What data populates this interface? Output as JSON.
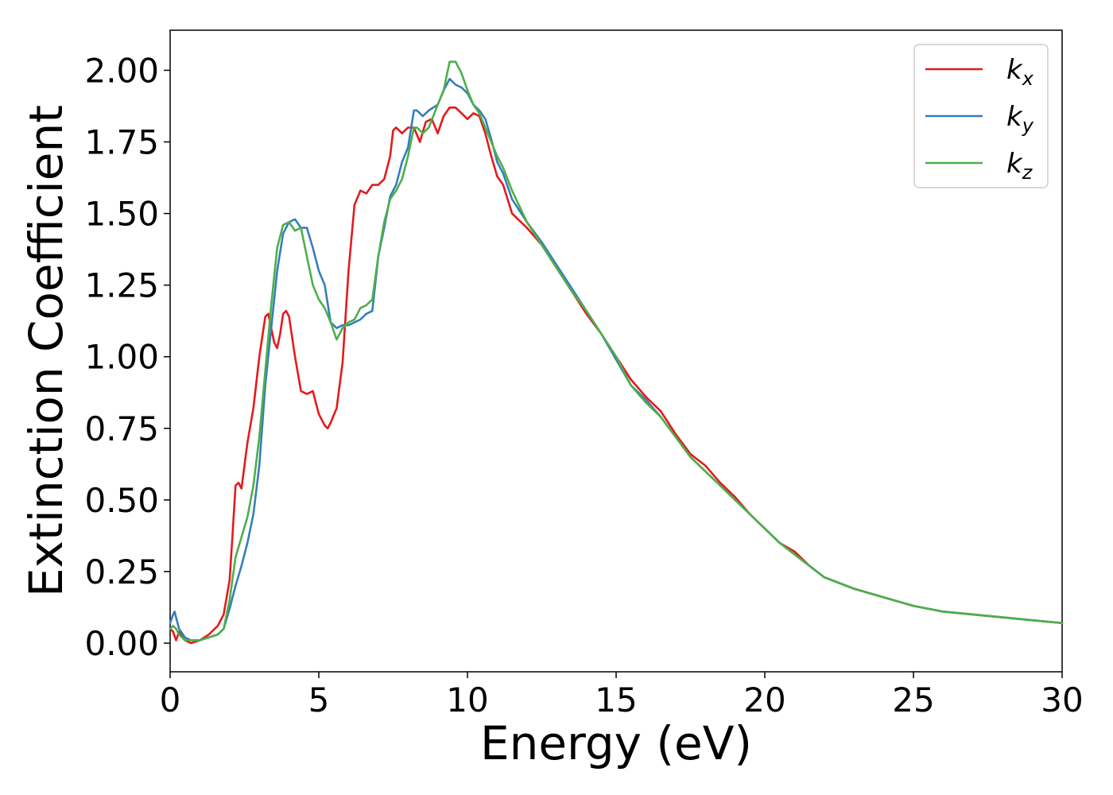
{
  "chart_data": {
    "type": "line",
    "xlabel": "Energy (eV)",
    "ylabel": "Extinction Coefficient",
    "xlim": [
      0,
      30
    ],
    "ylim": [
      -0.1,
      2.14
    ],
    "xticks": [
      0,
      5,
      10,
      15,
      20,
      25,
      30
    ],
    "xtick_labels": [
      "0",
      "5",
      "10",
      "15",
      "20",
      "25",
      "30"
    ],
    "yticks": [
      0.0,
      0.25,
      0.5,
      0.75,
      1.0,
      1.25,
      1.5,
      1.75,
      2.0
    ],
    "ytick_labels": [
      "0.00",
      "0.25",
      "0.50",
      "0.75",
      "1.00",
      "1.25",
      "1.50",
      "1.75",
      "2.00"
    ],
    "grid": false,
    "legend_position": "top-right",
    "series": [
      {
        "name": "k_x",
        "label_main": "k",
        "label_sub": "x",
        "color": "#e41a1c",
        "x": [
          0,
          0.1,
          0.2,
          0.3,
          0.5,
          0.7,
          1.0,
          1.3,
          1.6,
          1.8,
          2.0,
          2.1,
          2.2,
          2.3,
          2.4,
          2.6,
          2.8,
          3.0,
          3.2,
          3.3,
          3.4,
          3.5,
          3.6,
          3.7,
          3.8,
          3.9,
          4.0,
          4.2,
          4.4,
          4.6,
          4.8,
          5.0,
          5.2,
          5.3,
          5.4,
          5.6,
          5.8,
          6.0,
          6.2,
          6.4,
          6.6,
          6.8,
          7.0,
          7.2,
          7.4,
          7.5,
          7.6,
          7.8,
          8.0,
          8.2,
          8.4,
          8.6,
          8.8,
          9.0,
          9.2,
          9.4,
          9.6,
          9.8,
          10.0,
          10.2,
          10.4,
          10.6,
          10.8,
          11.0,
          11.2,
          11.5,
          12.0,
          12.5,
          13.0,
          13.5,
          14.0,
          14.5,
          15.0,
          15.5,
          16.0,
          16.5,
          17.0,
          17.5,
          18.0,
          18.5,
          19.0,
          19.5,
          20.0,
          20.5,
          21.0,
          21.5,
          22.0,
          23.0,
          24.0,
          25.0,
          26.0,
          27.0,
          28.0,
          29.0,
          30.0
        ],
        "y": [
          0.05,
          0.04,
          0.01,
          0.04,
          0.01,
          0.0,
          0.01,
          0.03,
          0.06,
          0.1,
          0.22,
          0.38,
          0.55,
          0.56,
          0.54,
          0.7,
          0.82,
          1.0,
          1.14,
          1.15,
          1.1,
          1.05,
          1.03,
          1.08,
          1.15,
          1.16,
          1.14,
          1.0,
          0.88,
          0.87,
          0.88,
          0.8,
          0.76,
          0.75,
          0.77,
          0.82,
          0.98,
          1.3,
          1.53,
          1.58,
          1.57,
          1.6,
          1.6,
          1.62,
          1.7,
          1.79,
          1.8,
          1.78,
          1.8,
          1.8,
          1.75,
          1.82,
          1.83,
          1.78,
          1.84,
          1.87,
          1.87,
          1.85,
          1.83,
          1.85,
          1.84,
          1.78,
          1.7,
          1.63,
          1.6,
          1.5,
          1.45,
          1.39,
          1.31,
          1.23,
          1.15,
          1.08,
          1.0,
          0.92,
          0.86,
          0.81,
          0.73,
          0.66,
          0.62,
          0.56,
          0.51,
          0.45,
          0.4,
          0.35,
          0.32,
          0.27,
          0.23,
          0.19,
          0.16,
          0.13,
          0.11,
          0.1,
          0.09,
          0.08,
          0.07
        ]
      },
      {
        "name": "k_y",
        "label_main": "k",
        "label_sub": "y",
        "color": "#377eb8",
        "x": [
          0,
          0.1,
          0.15,
          0.2,
          0.3,
          0.5,
          0.7,
          1.0,
          1.3,
          1.6,
          1.8,
          2.0,
          2.2,
          2.4,
          2.6,
          2.8,
          3.0,
          3.2,
          3.4,
          3.6,
          3.8,
          4.0,
          4.2,
          4.4,
          4.6,
          4.8,
          5.0,
          5.2,
          5.4,
          5.6,
          5.8,
          6.0,
          6.2,
          6.4,
          6.6,
          6.8,
          7.0,
          7.2,
          7.4,
          7.6,
          7.8,
          8.0,
          8.2,
          8.3,
          8.5,
          8.7,
          9.0,
          9.2,
          9.4,
          9.6,
          9.8,
          10.0,
          10.2,
          10.4,
          10.6,
          10.8,
          11.0,
          11.2,
          11.5,
          12.0,
          12.5,
          13.0,
          13.5,
          14.0,
          14.5,
          15.0,
          15.5,
          16.0,
          16.5,
          17.0,
          17.5,
          18.0,
          18.5,
          19.0,
          19.5,
          20.0,
          20.5,
          21.0,
          21.5,
          22.0,
          23.0,
          24.0,
          25.0,
          26.0,
          27.0,
          28.0,
          29.0,
          30.0
        ],
        "y": [
          0.07,
          0.1,
          0.11,
          0.09,
          0.05,
          0.02,
          0.01,
          0.01,
          0.02,
          0.03,
          0.05,
          0.12,
          0.2,
          0.27,
          0.35,
          0.45,
          0.62,
          0.9,
          1.1,
          1.3,
          1.43,
          1.47,
          1.48,
          1.45,
          1.45,
          1.38,
          1.3,
          1.25,
          1.12,
          1.1,
          1.11,
          1.11,
          1.12,
          1.13,
          1.15,
          1.16,
          1.35,
          1.45,
          1.56,
          1.6,
          1.68,
          1.73,
          1.86,
          1.86,
          1.84,
          1.86,
          1.88,
          1.93,
          1.97,
          1.95,
          1.94,
          1.92,
          1.88,
          1.86,
          1.83,
          1.76,
          1.68,
          1.64,
          1.55,
          1.47,
          1.4,
          1.32,
          1.24,
          1.16,
          1.08,
          0.99,
          0.9,
          0.85,
          0.79,
          0.72,
          0.65,
          0.6,
          0.55,
          0.5,
          0.45,
          0.4,
          0.35,
          0.31,
          0.27,
          0.23,
          0.19,
          0.16,
          0.13,
          0.11,
          0.1,
          0.09,
          0.08,
          0.07
        ]
      },
      {
        "name": "k_z",
        "label_main": "k",
        "label_sub": "z",
        "color": "#4daf4a",
        "x": [
          0,
          0.1,
          0.2,
          0.3,
          0.5,
          0.7,
          1.0,
          1.3,
          1.6,
          1.8,
          2.0,
          2.2,
          2.4,
          2.6,
          2.8,
          3.0,
          3.2,
          3.4,
          3.6,
          3.8,
          4.0,
          4.2,
          4.4,
          4.6,
          4.8,
          5.0,
          5.2,
          5.4,
          5.6,
          5.8,
          6.0,
          6.2,
          6.4,
          6.6,
          6.8,
          7.0,
          7.2,
          7.4,
          7.6,
          7.8,
          8.0,
          8.2,
          8.3,
          8.5,
          8.7,
          9.0,
          9.2,
          9.4,
          9.6,
          9.8,
          10.0,
          10.2,
          10.4,
          10.6,
          10.8,
          11.0,
          11.2,
          11.5,
          12.0,
          12.5,
          13.0,
          13.5,
          14.0,
          14.5,
          15.0,
          15.5,
          16.0,
          16.5,
          17.0,
          17.5,
          18.0,
          18.5,
          19.0,
          19.5,
          20.0,
          20.5,
          21.0,
          21.5,
          22.0,
          23.0,
          24.0,
          25.0,
          26.0,
          27.0,
          28.0,
          29.0,
          30.0
        ],
        "y": [
          0.05,
          0.06,
          0.05,
          0.03,
          0.01,
          0.01,
          0.01,
          0.02,
          0.03,
          0.05,
          0.15,
          0.3,
          0.37,
          0.44,
          0.55,
          0.72,
          0.95,
          1.18,
          1.38,
          1.46,
          1.47,
          1.44,
          1.45,
          1.35,
          1.25,
          1.2,
          1.17,
          1.12,
          1.06,
          1.1,
          1.12,
          1.13,
          1.17,
          1.18,
          1.2,
          1.35,
          1.47,
          1.55,
          1.58,
          1.62,
          1.7,
          1.8,
          1.8,
          1.78,
          1.8,
          1.88,
          1.93,
          2.03,
          2.03,
          1.99,
          1.93,
          1.88,
          1.85,
          1.8,
          1.75,
          1.7,
          1.66,
          1.58,
          1.47,
          1.39,
          1.31,
          1.23,
          1.16,
          1.08,
          1.0,
          0.9,
          0.84,
          0.79,
          0.72,
          0.65,
          0.6,
          0.55,
          0.5,
          0.45,
          0.4,
          0.35,
          0.31,
          0.27,
          0.23,
          0.19,
          0.16,
          0.13,
          0.11,
          0.1,
          0.09,
          0.08,
          0.07
        ]
      }
    ]
  }
}
